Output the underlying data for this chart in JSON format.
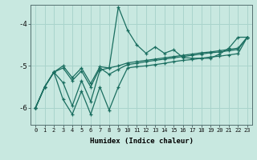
{
  "xlabel": "Humidex (Indice chaleur)",
  "bg_color": "#c8e8e0",
  "grid_color": "#aad4cc",
  "line_color": "#1a6e60",
  "xlim": [
    -0.5,
    23.5
  ],
  "ylim": [
    -6.4,
    -3.55
  ],
  "xticks": [
    0,
    1,
    2,
    3,
    4,
    5,
    6,
    7,
    8,
    9,
    10,
    11,
    12,
    13,
    14,
    15,
    16,
    17,
    18,
    19,
    20,
    21,
    22,
    23
  ],
  "yticks": [
    -6,
    -5,
    -4
  ],
  "x": [
    0,
    1,
    2,
    3,
    4,
    5,
    6,
    7,
    8,
    9,
    10,
    11,
    12,
    13,
    14,
    15,
    16,
    17,
    18,
    19,
    20,
    21,
    22,
    23
  ],
  "line_jagged": [
    -6.0,
    -5.5,
    -5.15,
    -5.4,
    -5.95,
    -5.35,
    -5.85,
    -5.1,
    -5.05,
    -3.6,
    -4.15,
    -4.5,
    -4.7,
    -4.55,
    -4.7,
    -4.62,
    -4.8,
    -4.82,
    -4.82,
    -4.82,
    -4.72,
    -4.58,
    -4.32,
    -4.32
  ],
  "line_low": [
    -6.0,
    -5.5,
    -5.15,
    -5.8,
    -6.15,
    -5.6,
    -6.15,
    -5.5,
    -6.05,
    -5.5,
    -5.05,
    -5.02,
    -5.0,
    -4.97,
    -4.94,
    -4.9,
    -4.87,
    -4.85,
    -4.82,
    -4.79,
    -4.77,
    -4.74,
    -4.71,
    -4.32
  ],
  "line_mid": [
    -6.0,
    -5.5,
    -5.15,
    -5.05,
    -5.35,
    -5.12,
    -5.5,
    -5.05,
    -5.2,
    -5.08,
    -4.97,
    -4.94,
    -4.9,
    -4.87,
    -4.84,
    -4.81,
    -4.78,
    -4.75,
    -4.72,
    -4.69,
    -4.67,
    -4.64,
    -4.61,
    -4.32
  ],
  "line_high": [
    -6.0,
    -5.5,
    -5.15,
    -5.0,
    -5.28,
    -5.05,
    -5.42,
    -5.02,
    -5.05,
    -5.0,
    -4.93,
    -4.9,
    -4.87,
    -4.84,
    -4.81,
    -4.78,
    -4.75,
    -4.72,
    -4.69,
    -4.67,
    -4.64,
    -4.61,
    -4.58,
    -4.32
  ]
}
